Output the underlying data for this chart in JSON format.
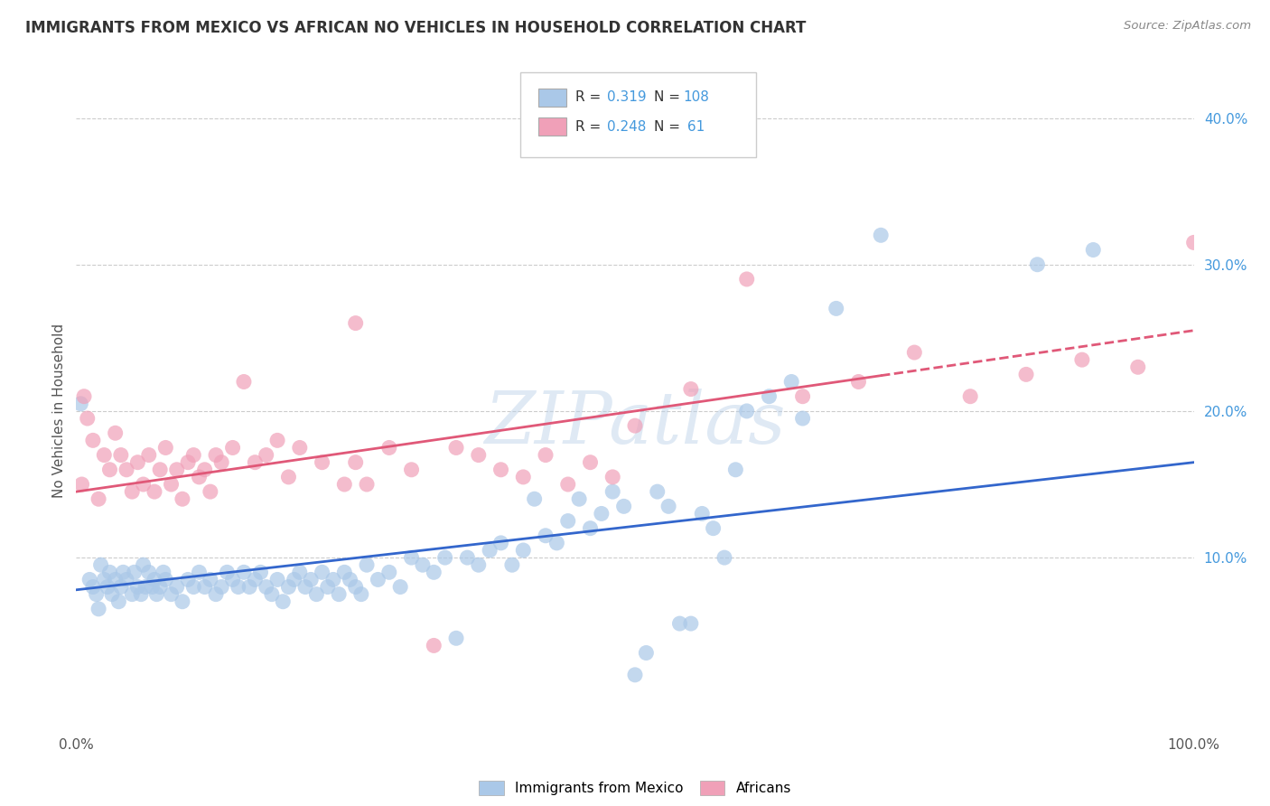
{
  "title": "IMMIGRANTS FROM MEXICO VS AFRICAN NO VEHICLES IN HOUSEHOLD CORRELATION CHART",
  "source_text": "Source: ZipAtlas.com",
  "ylabel": "No Vehicles in Household",
  "xlim": [
    0,
    100
  ],
  "ylim": [
    -2,
    42
  ],
  "x_tick_labels": [
    "0.0%",
    "100.0%"
  ],
  "x_tick_extra": [
    "",
    "",
    "",
    "",
    ""
  ],
  "y_tick_labels": [
    "10.0%",
    "20.0%",
    "30.0%",
    "40.0%"
  ],
  "y_tick_positions": [
    10,
    20,
    30,
    40
  ],
  "R_color": "#4499dd",
  "watermark": "ZIPatlas",
  "background_color": "#ffffff",
  "grid_color": "#cccccc",
  "blue_scatter_color": "#aac8e8",
  "pink_scatter_color": "#f0a0b8",
  "blue_line_color": "#3366cc",
  "pink_line_color": "#e05878",
  "blue_points": [
    [
      0.4,
      20.5
    ],
    [
      1.2,
      8.5
    ],
    [
      1.5,
      8.0
    ],
    [
      1.8,
      7.5
    ],
    [
      2.0,
      6.5
    ],
    [
      2.2,
      9.5
    ],
    [
      2.5,
      8.5
    ],
    [
      2.8,
      8.0
    ],
    [
      3.0,
      9.0
    ],
    [
      3.2,
      7.5
    ],
    [
      3.5,
      8.5
    ],
    [
      3.8,
      7.0
    ],
    [
      4.0,
      8.0
    ],
    [
      4.2,
      9.0
    ],
    [
      4.5,
      8.5
    ],
    [
      5.0,
      7.5
    ],
    [
      5.2,
      9.0
    ],
    [
      5.5,
      8.0
    ],
    [
      5.8,
      7.5
    ],
    [
      6.0,
      9.5
    ],
    [
      6.2,
      8.0
    ],
    [
      6.5,
      9.0
    ],
    [
      6.8,
      8.0
    ],
    [
      7.0,
      8.5
    ],
    [
      7.2,
      7.5
    ],
    [
      7.5,
      8.0
    ],
    [
      7.8,
      9.0
    ],
    [
      8.0,
      8.5
    ],
    [
      8.5,
      7.5
    ],
    [
      9.0,
      8.0
    ],
    [
      9.5,
      7.0
    ],
    [
      10.0,
      8.5
    ],
    [
      10.5,
      8.0
    ],
    [
      11.0,
      9.0
    ],
    [
      11.5,
      8.0
    ],
    [
      12.0,
      8.5
    ],
    [
      12.5,
      7.5
    ],
    [
      13.0,
      8.0
    ],
    [
      13.5,
      9.0
    ],
    [
      14.0,
      8.5
    ],
    [
      14.5,
      8.0
    ],
    [
      15.0,
      9.0
    ],
    [
      15.5,
      8.0
    ],
    [
      16.0,
      8.5
    ],
    [
      16.5,
      9.0
    ],
    [
      17.0,
      8.0
    ],
    [
      17.5,
      7.5
    ],
    [
      18.0,
      8.5
    ],
    [
      18.5,
      7.0
    ],
    [
      19.0,
      8.0
    ],
    [
      19.5,
      8.5
    ],
    [
      20.0,
      9.0
    ],
    [
      20.5,
      8.0
    ],
    [
      21.0,
      8.5
    ],
    [
      21.5,
      7.5
    ],
    [
      22.0,
      9.0
    ],
    [
      22.5,
      8.0
    ],
    [
      23.0,
      8.5
    ],
    [
      23.5,
      7.5
    ],
    [
      24.0,
      9.0
    ],
    [
      24.5,
      8.5
    ],
    [
      25.0,
      8.0
    ],
    [
      25.5,
      7.5
    ],
    [
      26.0,
      9.5
    ],
    [
      27.0,
      8.5
    ],
    [
      28.0,
      9.0
    ],
    [
      29.0,
      8.0
    ],
    [
      30.0,
      10.0
    ],
    [
      31.0,
      9.5
    ],
    [
      32.0,
      9.0
    ],
    [
      33.0,
      10.0
    ],
    [
      34.0,
      4.5
    ],
    [
      35.0,
      10.0
    ],
    [
      36.0,
      9.5
    ],
    [
      37.0,
      10.5
    ],
    [
      38.0,
      11.0
    ],
    [
      39.0,
      9.5
    ],
    [
      40.0,
      10.5
    ],
    [
      41.0,
      14.0
    ],
    [
      42.0,
      11.5
    ],
    [
      43.0,
      11.0
    ],
    [
      44.0,
      12.5
    ],
    [
      45.0,
      14.0
    ],
    [
      46.0,
      12.0
    ],
    [
      47.0,
      13.0
    ],
    [
      48.0,
      14.5
    ],
    [
      49.0,
      13.5
    ],
    [
      50.0,
      2.0
    ],
    [
      51.0,
      3.5
    ],
    [
      52.0,
      14.5
    ],
    [
      53.0,
      13.5
    ],
    [
      54.0,
      5.5
    ],
    [
      55.0,
      5.5
    ],
    [
      56.0,
      13.0
    ],
    [
      57.0,
      12.0
    ],
    [
      58.0,
      10.0
    ],
    [
      59.0,
      16.0
    ],
    [
      60.0,
      20.0
    ],
    [
      62.0,
      21.0
    ],
    [
      64.0,
      22.0
    ],
    [
      65.0,
      19.5
    ],
    [
      68.0,
      27.0
    ],
    [
      72.0,
      32.0
    ],
    [
      86.0,
      30.0
    ],
    [
      91.0,
      31.0
    ]
  ],
  "pink_points": [
    [
      0.5,
      15.0
    ],
    [
      0.7,
      21.0
    ],
    [
      1.0,
      19.5
    ],
    [
      1.5,
      18.0
    ],
    [
      2.0,
      14.0
    ],
    [
      2.5,
      17.0
    ],
    [
      3.0,
      16.0
    ],
    [
      3.5,
      18.5
    ],
    [
      4.0,
      17.0
    ],
    [
      4.5,
      16.0
    ],
    [
      5.0,
      14.5
    ],
    [
      5.5,
      16.5
    ],
    [
      6.0,
      15.0
    ],
    [
      6.5,
      17.0
    ],
    [
      7.0,
      14.5
    ],
    [
      7.5,
      16.0
    ],
    [
      8.0,
      17.5
    ],
    [
      8.5,
      15.0
    ],
    [
      9.0,
      16.0
    ],
    [
      9.5,
      14.0
    ],
    [
      10.0,
      16.5
    ],
    [
      10.5,
      17.0
    ],
    [
      11.0,
      15.5
    ],
    [
      11.5,
      16.0
    ],
    [
      12.0,
      14.5
    ],
    [
      12.5,
      17.0
    ],
    [
      13.0,
      16.5
    ],
    [
      14.0,
      17.5
    ],
    [
      15.0,
      22.0
    ],
    [
      16.0,
      16.5
    ],
    [
      17.0,
      17.0
    ],
    [
      18.0,
      18.0
    ],
    [
      19.0,
      15.5
    ],
    [
      20.0,
      17.5
    ],
    [
      22.0,
      16.5
    ],
    [
      24.0,
      15.0
    ],
    [
      25.0,
      16.5
    ],
    [
      26.0,
      15.0
    ],
    [
      28.0,
      17.5
    ],
    [
      30.0,
      16.0
    ],
    [
      32.0,
      4.0
    ],
    [
      34.0,
      17.5
    ],
    [
      36.0,
      17.0
    ],
    [
      38.0,
      16.0
    ],
    [
      40.0,
      15.5
    ],
    [
      42.0,
      17.0
    ],
    [
      44.0,
      15.0
    ],
    [
      46.0,
      16.5
    ],
    [
      48.0,
      15.5
    ],
    [
      55.0,
      21.5
    ],
    [
      60.0,
      29.0
    ],
    [
      65.0,
      21.0
    ],
    [
      70.0,
      22.0
    ],
    [
      75.0,
      24.0
    ],
    [
      80.0,
      21.0
    ],
    [
      85.0,
      22.5
    ],
    [
      90.0,
      23.5
    ],
    [
      95.0,
      23.0
    ],
    [
      100.0,
      31.5
    ],
    [
      50.0,
      19.0
    ],
    [
      25.0,
      26.0
    ]
  ],
  "blue_line_x": [
    0,
    100
  ],
  "blue_line_y": [
    7.8,
    16.5
  ],
  "pink_line_x": [
    0,
    100
  ],
  "pink_line_y": [
    14.5,
    25.5
  ],
  "pink_solid_end_x": 72
}
